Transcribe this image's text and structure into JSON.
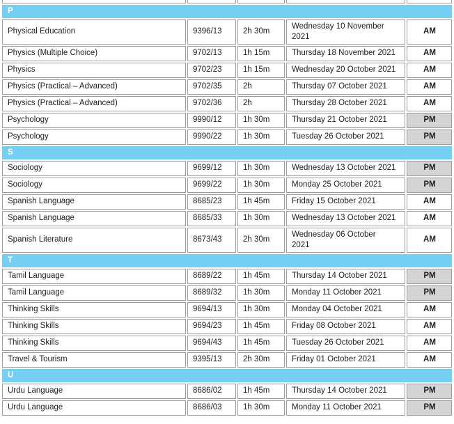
{
  "table": {
    "columns": [
      "subject",
      "code",
      "duration",
      "date",
      "session"
    ],
    "colors": {
      "section_band": "#74cff2",
      "section_letter_text": "#ffffff",
      "pm_cell_background": "#d4d4d4",
      "am_cell_background": "#ffffff",
      "cell_border": "#9c9c9c",
      "text": "#1e1e1e"
    }
  },
  "sections": [
    {
      "letter": "P",
      "rows": [
        {
          "subject": "Physical Education",
          "code": "9396/13",
          "duration": "2h 30m",
          "date": "Wednesday 10 November 2021",
          "session": "AM",
          "date_wraps": true
        },
        {
          "subject": "Physics (Multiple Choice)",
          "code": "9702/13",
          "duration": "1h 15m",
          "date": "Thursday 18 November 2021",
          "session": "AM"
        },
        {
          "subject": "Physics",
          "code": "9702/23",
          "duration": "1h 15m",
          "date": "Wednesday 20 October 2021",
          "session": "AM"
        },
        {
          "subject": "Physics (Practical – Advanced)",
          "code": "9702/35",
          "duration": "2h",
          "date": "Thursday 07 October 2021",
          "session": "AM"
        },
        {
          "subject": "Physics (Practical – Advanced)",
          "code": "9702/36",
          "duration": "2h",
          "date": "Thursday 28 October 2021",
          "session": "AM"
        },
        {
          "subject": "Psychology",
          "code": "9990/12",
          "duration": "1h 30m",
          "date": "Thursday 21 October 2021",
          "session": "PM"
        },
        {
          "subject": "Psychology",
          "code": "9990/22",
          "duration": "1h 30m",
          "date": "Tuesday 26 October 2021",
          "session": "PM"
        }
      ]
    },
    {
      "letter": "S",
      "rows": [
        {
          "subject": "Sociology",
          "code": "9699/12",
          "duration": "1h 30m",
          "date": "Wednesday 13 October 2021",
          "session": "PM"
        },
        {
          "subject": "Sociology",
          "code": "9699/22",
          "duration": "1h 30m",
          "date": "Monday 25 October 2021",
          "session": "PM"
        },
        {
          "subject": "Spanish Language",
          "code": "8685/23",
          "duration": "1h 45m",
          "date": "Friday 15 October 2021",
          "session": "AM"
        },
        {
          "subject": "Spanish Language",
          "code": "8685/33",
          "duration": "1h 30m",
          "date": "Wednesday 13 October 2021",
          "session": "AM"
        },
        {
          "subject": "Spanish Literature",
          "code": "8673/43",
          "duration": "2h 30m",
          "date": "Wednesday 06 October 2021",
          "session": "AM",
          "date_wraps": true
        }
      ]
    },
    {
      "letter": "T",
      "rows": [
        {
          "subject": "Tamil Language",
          "code": "8689/22",
          "duration": "1h 45m",
          "date": "Thursday 14 October 2021",
          "session": "PM"
        },
        {
          "subject": "Tamil Language",
          "code": "8689/32",
          "duration": "1h 30m",
          "date": "Monday 11 October 2021",
          "session": "PM"
        },
        {
          "subject": "Thinking Skills",
          "code": "9694/13",
          "duration": "1h 30m",
          "date": "Monday 04 October 2021",
          "session": "AM"
        },
        {
          "subject": "Thinking Skills",
          "code": "9694/23",
          "duration": "1h 45m",
          "date": "Friday 08 October 2021",
          "session": "AM"
        },
        {
          "subject": "Thinking Skills",
          "code": "9694/43",
          "duration": "1h 45m",
          "date": "Tuesday 26 October 2021",
          "session": "AM"
        },
        {
          "subject": "Travel & Tourism",
          "code": "9395/13",
          "duration": "2h 30m",
          "date": "Friday 01 October 2021",
          "session": "AM"
        }
      ]
    },
    {
      "letter": "U",
      "rows": [
        {
          "subject": "Urdu Language",
          "code": "8686/02",
          "duration": "1h 45m",
          "date": "Thursday 14 October 2021",
          "session": "PM"
        },
        {
          "subject": "Urdu Language",
          "code": "8686/03",
          "duration": "1h 30m",
          "date": "Monday 11 October 2021",
          "session": "PM"
        }
      ]
    }
  ]
}
